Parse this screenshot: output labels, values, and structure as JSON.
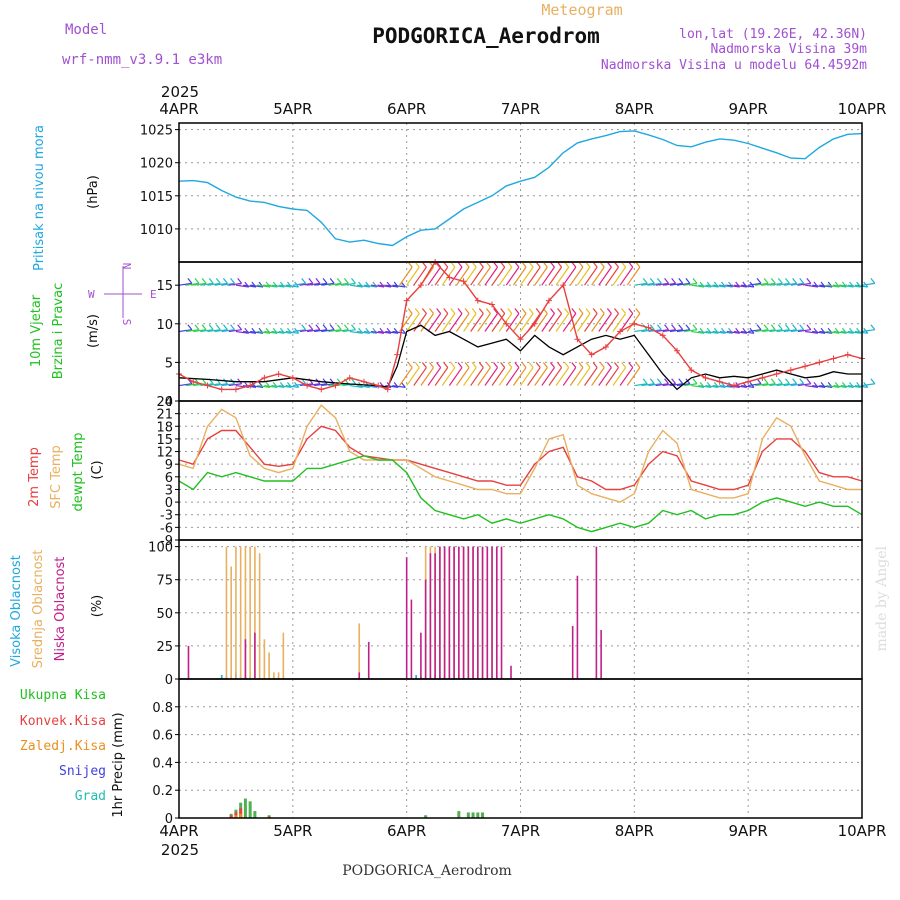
{
  "header": {
    "model_label": "Model",
    "model_name": "wrf-nmm_v3.9.1 e3km",
    "subtitle": "Meteogram",
    "station": "PODGORICA_Aerodrom",
    "lonlat": "lon,lat (19.26E, 42.36N)",
    "elevation": "Nadmorska Visina 39m",
    "model_elevation": "Nadmorska Visina u modelu 64.4592m",
    "footer_station": "PODGORICA_Aerodrom",
    "credit": "made by Angel",
    "year_top": "2025",
    "year_bottom": "2025"
  },
  "colors": {
    "purple": "#a050d0",
    "gold": "#e8b060",
    "cyan": "#20a8e0",
    "red": "#e84040",
    "green": "#20c020",
    "orange": "#e89020",
    "magenta": "#c0208a",
    "blue": "#4040e0",
    "teal": "#20c0b0",
    "lightgreen": "#50b050",
    "grid": "#9a9a9a"
  },
  "chart_data": {
    "type": "meteogram",
    "dates": [
      "4APR",
      "5APR",
      "6APR",
      "7APR",
      "8APR",
      "9APR",
      "10APR"
    ],
    "time_range_hours": [
      0,
      144
    ],
    "panels": [
      {
        "id": "pressure",
        "type": "line",
        "ylabel": "Pritisak na nivou mora",
        "unit": "(hPa)",
        "ylim": [
          1005,
          1026
        ],
        "yticks": [
          1010,
          1015,
          1020,
          1025
        ],
        "series": [
          {
            "name": "Pritisak na nivou mora",
            "color": "#20a8e0",
            "t": [
              0,
              3,
              6,
              9,
              12,
              15,
              18,
              21,
              24,
              27,
              30,
              33,
              36,
              39,
              42,
              45,
              48,
              51,
              54,
              57,
              60,
              63,
              66,
              69,
              72,
              75,
              78,
              81,
              84,
              87,
              90,
              93,
              96,
              99,
              102,
              105,
              108,
              111,
              114,
              117,
              120,
              123,
              126,
              129,
              132,
              135,
              138,
              141,
              144
            ],
            "values": [
              1017.2,
              1017.3,
              1017.0,
              1015.8,
              1014.8,
              1014.2,
              1014.0,
              1013.4,
              1013.0,
              1012.8,
              1011.0,
              1008.5,
              1008.0,
              1008.3,
              1007.8,
              1007.5,
              1008.8,
              1009.8,
              1010.0,
              1011.5,
              1013.0,
              1014.0,
              1015.0,
              1016.5,
              1017.2,
              1017.8,
              1019.3,
              1021.5,
              1023.0,
              1023.6,
              1024.1,
              1024.7,
              1024.8,
              1024.2,
              1023.5,
              1022.6,
              1022.4,
              1023.1,
              1023.6,
              1023.4,
              1022.9,
              1022.2,
              1021.5,
              1020.7,
              1020.6,
              1022.3,
              1023.6,
              1024.3,
              1024.4
            ]
          }
        ]
      },
      {
        "id": "wind",
        "type": "line+barbs",
        "ylabel": "10m Vjetar Brzina i Pravac",
        "unit": "(m/s)",
        "ylim": [
          0,
          18
        ],
        "yticks": [
          0,
          5,
          10,
          15
        ],
        "compass": {
          "north": "N",
          "south": "S",
          "west": "W",
          "east": "E"
        },
        "barb_rows_ms": [
          2,
          9,
          15
        ],
        "series": [
          {
            "name": "Brzina vjetra 10m",
            "color": "#000000",
            "t": [
              0,
              6,
              12,
              18,
              24,
              30,
              36,
              42,
              44,
              46,
              48,
              51,
              54,
              57,
              60,
              63,
              66,
              69,
              72,
              75,
              78,
              81,
              84,
              87,
              90,
              93,
              96,
              99,
              102,
              105,
              108,
              111,
              114,
              117,
              120,
              123,
              126,
              129,
              132,
              135,
              138,
              141,
              144
            ],
            "values": [
              3.0,
              2.8,
              2.5,
              2.5,
              3.0,
              2.5,
              2.2,
              2.0,
              1.8,
              4.5,
              9.0,
              9.8,
              8.5,
              9.0,
              8.0,
              7.0,
              7.5,
              8.0,
              6.5,
              8.5,
              7.0,
              6.0,
              7.0,
              8.0,
              8.5,
              8.0,
              8.5,
              6.0,
              3.5,
              1.5,
              3.0,
              3.5,
              3.0,
              3.2,
              3.0,
              3.5,
              4.0,
              3.5,
              3.0,
              3.2,
              3.8,
              3.5,
              3.5
            ]
          },
          {
            "name": "Udari vjetra",
            "color": "#e84040",
            "t": [
              0,
              3,
              6,
              9,
              12,
              15,
              18,
              21,
              24,
              27,
              30,
              33,
              36,
              39,
              42,
              44,
              46,
              48,
              51,
              54,
              57,
              60,
              63,
              66,
              69,
              72,
              75,
              78,
              81,
              84,
              87,
              90,
              93,
              96,
              99,
              102,
              105,
              108,
              111,
              114,
              117,
              120,
              123,
              126,
              129,
              132,
              135,
              138,
              141,
              144
            ],
            "values": [
              3.5,
              2.5,
              2.0,
              1.5,
              1.5,
              2.0,
              3.0,
              3.5,
              3.0,
              2.0,
              1.5,
              2.0,
              3.0,
              2.5,
              2.0,
              1.5,
              6.0,
              13.0,
              15.0,
              18.0,
              16.0,
              15.5,
              13.0,
              12.5,
              10.0,
              8.0,
              10.0,
              13.0,
              15.0,
              8.0,
              6.0,
              7.0,
              9.0,
              10.0,
              9.5,
              8.5,
              6.5,
              4.0,
              3.0,
              2.5,
              2.0,
              2.5,
              3.0,
              3.5,
              4.0,
              4.5,
              5.0,
              5.5,
              6.0,
              5.5
            ]
          }
        ]
      },
      {
        "id": "temperature",
        "type": "line",
        "ylabel": [
          "2m Temp",
          "SFC Temp",
          "dewpt Temp"
        ],
        "unit": "(C)",
        "ylim": [
          -9,
          24
        ],
        "yticks": [
          -9,
          -6,
          -3,
          0,
          3,
          6,
          9,
          12,
          15,
          18,
          21,
          24
        ],
        "series": [
          {
            "name": "2m Temp",
            "color": "#e84040",
            "t": [
              0,
              3,
              6,
              9,
              12,
              15,
              18,
              21,
              24,
              27,
              30,
              33,
              36,
              39,
              42,
              45,
              48,
              51,
              54,
              57,
              60,
              63,
              66,
              69,
              72,
              75,
              78,
              81,
              84,
              87,
              90,
              93,
              96,
              99,
              102,
              105,
              108,
              111,
              114,
              117,
              120,
              123,
              126,
              129,
              132,
              135,
              138,
              141,
              144
            ],
            "values": [
              10,
              9,
              15,
              17,
              17,
              13,
              9,
              8.5,
              9,
              15,
              18,
              17,
              13,
              11,
              10.5,
              10,
              10,
              9,
              8,
              7,
              6,
              5,
              5,
              4,
              4,
              9,
              12,
              13,
              6,
              5,
              3,
              3,
              4,
              9,
              12,
              11,
              5,
              4,
              3,
              3,
              4,
              12,
              15,
              15,
              12,
              7,
              6,
              6,
              5
            ]
          },
          {
            "name": "SFC Temp",
            "color": "#e8b060",
            "t": [
              0,
              3,
              6,
              9,
              12,
              15,
              18,
              21,
              24,
              27,
              30,
              33,
              36,
              39,
              42,
              45,
              48,
              51,
              54,
              57,
              60,
              63,
              66,
              69,
              72,
              75,
              78,
              81,
              84,
              87,
              90,
              93,
              96,
              99,
              102,
              105,
              108,
              111,
              114,
              117,
              120,
              123,
              126,
              129,
              132,
              135,
              138,
              141,
              144
            ],
            "values": [
              9,
              8,
              18,
              22,
              20,
              11,
              8,
              7,
              8,
              18,
              23,
              20,
              12,
              10,
              10,
              10,
              10,
              8,
              6,
              5,
              4,
              3,
              3,
              2,
              2,
              8,
              15,
              16,
              4,
              2,
              1,
              0,
              2,
              12,
              17,
              14,
              3,
              2,
              1,
              1,
              2,
              15,
              20,
              18,
              11,
              5,
              4,
              3,
              3
            ]
          },
          {
            "name": "dewpt Temp",
            "color": "#20c020",
            "t": [
              0,
              3,
              6,
              9,
              12,
              15,
              18,
              21,
              24,
              27,
              30,
              33,
              36,
              39,
              42,
              45,
              48,
              51,
              54,
              57,
              60,
              63,
              66,
              69,
              72,
              75,
              78,
              81,
              84,
              87,
              90,
              93,
              96,
              99,
              102,
              105,
              108,
              111,
              114,
              117,
              120,
              123,
              126,
              129,
              132,
              135,
              138,
              141,
              144
            ],
            "values": [
              5,
              3,
              7,
              6,
              7,
              6,
              5,
              5,
              5,
              8,
              8,
              9,
              10,
              11,
              10,
              10,
              7,
              1,
              -2,
              -3,
              -4,
              -3,
              -5,
              -4,
              -5,
              -4,
              -3,
              -4,
              -6,
              -7,
              -6,
              -5,
              -6,
              -5,
              -2,
              -3,
              -2,
              -4,
              -3,
              -3,
              -2,
              0,
              1,
              0,
              -1,
              0,
              -1,
              -1,
              -3
            ]
          }
        ]
      },
      {
        "id": "clouds",
        "type": "bar",
        "ylabel": [
          "Visoka Oblacnost",
          "Srednja Oblacnost",
          "Niska Oblacnost"
        ],
        "unit": "(%)",
        "ylim": [
          0,
          105
        ],
        "yticks": [
          0,
          25,
          50,
          75,
          100
        ],
        "series": [
          {
            "name": "Visoka Oblacnost",
            "color": "#20a8e0",
            "t": [
              9,
              10,
              11,
              12,
              13,
              14,
              15,
              50,
              51,
              52,
              53,
              54,
              55,
              56
            ],
            "values": [
              3,
              2,
              2,
              5,
              3,
              2,
              2,
              3,
              2,
              3,
              2,
              3,
              2,
              2
            ]
          },
          {
            "name": "Srednja Oblacnost",
            "color": "#e8b060",
            "t": [
              10,
              11,
              12,
              13,
              14,
              15,
              16,
              17,
              18,
              19,
              20,
              21,
              22,
              38,
              52,
              53,
              54,
              55,
              56,
              57,
              58,
              59,
              60,
              61,
              62,
              63,
              64,
              65,
              66,
              67
            ],
            "values": [
              100,
              85,
              100,
              100,
              100,
              100,
              100,
              95,
              30,
              20,
              5,
              5,
              35,
              42,
              100,
              100,
              100,
              100,
              100,
              100,
              100,
              100,
              100,
              100,
              100,
              100,
              100,
              100,
              100,
              100
            ]
          },
          {
            "name": "Niska Oblacnost",
            "color": "#c0208a",
            "t": [
              2,
              14,
              16,
              38,
              40,
              48,
              49,
              51,
              52,
              53,
              54,
              55,
              56,
              57,
              58,
              59,
              60,
              61,
              62,
              63,
              64,
              65,
              66,
              67,
              68,
              70,
              83,
              84,
              88,
              89
            ],
            "values": [
              25,
              30,
              35,
              5,
              28,
              92,
              60,
              35,
              75,
              95,
              95,
              100,
              100,
              100,
              100,
              100,
              100,
              100,
              100,
              100,
              100,
              100,
              100,
              100,
              100,
              10,
              40,
              78,
              100,
              37
            ]
          }
        ]
      },
      {
        "id": "precip",
        "type": "bar",
        "ylabel": "1hr Precip",
        "unit": "(mm)",
        "ylim": [
          0,
          1.0
        ],
        "yticks": [
          0,
          0.2,
          0.4,
          0.6,
          0.8
        ],
        "legend": [
          "Ukupna Kisa",
          "Konvek.Kisa",
          "Zaledj.Kisa",
          "Snijeg",
          "Grad"
        ],
        "series": [
          {
            "name": "Ukupna Kisa",
            "color": "#50b050",
            "t": [
              11,
              12,
              13,
              14,
              15,
              16,
              19,
              52,
              59,
              61,
              62,
              63,
              64
            ],
            "values": [
              0.03,
              0.06,
              0.11,
              0.14,
              0.12,
              0.05,
              0.02,
              0.02,
              0.05,
              0.04,
              0.04,
              0.04,
              0.04
            ]
          },
          {
            "name": "Konvek.Kisa",
            "color": "#e84040",
            "t": [
              11,
              12,
              13,
              19
            ],
            "values": [
              0.02,
              0.04,
              0.07,
              0.01
            ]
          },
          {
            "name": "Zaledj.Kisa",
            "color": "#e89020",
            "t": [
              12,
              13
            ],
            "values": [
              0.02,
              0.03
            ]
          }
        ]
      }
    ]
  }
}
